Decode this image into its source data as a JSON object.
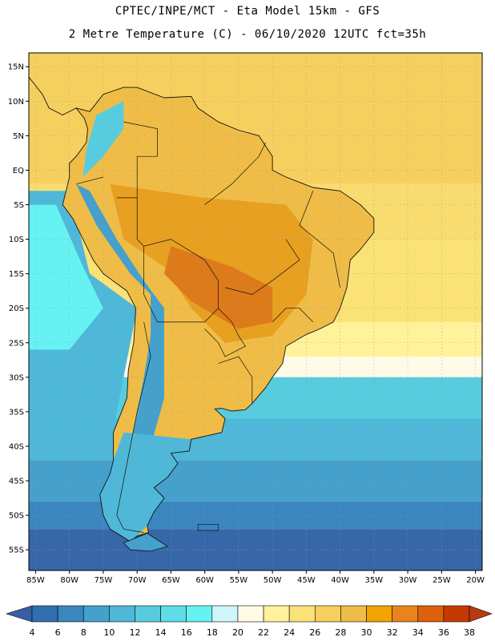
{
  "header": {
    "line1": "CPTEC/INPE/MCT -  Eta Model 15km - GFS",
    "line2": "2 Metre Temperature (C) - 06/10/2020 12UTC fct=35h"
  },
  "map": {
    "lon_range": [
      -86,
      -19
    ],
    "lat_range": [
      -58,
      17
    ],
    "lat_ticks": [
      {
        "value": 15,
        "label": "15N"
      },
      {
        "value": 10,
        "label": "10N"
      },
      {
        "value": 5,
        "label": "5N"
      },
      {
        "value": 0,
        "label": "EQ"
      },
      {
        "value": -5,
        "label": "5S"
      },
      {
        "value": -10,
        "label": "10S"
      },
      {
        "value": -15,
        "label": "15S"
      },
      {
        "value": -20,
        "label": "20S"
      },
      {
        "value": -25,
        "label": "25S"
      },
      {
        "value": -30,
        "label": "30S"
      },
      {
        "value": -35,
        "label": "35S"
      },
      {
        "value": -40,
        "label": "40S"
      },
      {
        "value": -45,
        "label": "45S"
      },
      {
        "value": -50,
        "label": "50S"
      },
      {
        "value": -55,
        "label": "55S"
      }
    ],
    "lon_ticks": [
      {
        "value": -85,
        "label": "85W"
      },
      {
        "value": -80,
        "label": "80W"
      },
      {
        "value": -75,
        "label": "75W"
      },
      {
        "value": -70,
        "label": "70W"
      },
      {
        "value": -65,
        "label": "65W"
      },
      {
        "value": -60,
        "label": "60W"
      },
      {
        "value": -55,
        "label": "55W"
      },
      {
        "value": -50,
        "label": "50W"
      },
      {
        "value": -45,
        "label": "45W"
      },
      {
        "value": -40,
        "label": "40W"
      },
      {
        "value": -35,
        "label": "35W"
      },
      {
        "value": -30,
        "label": "30W"
      },
      {
        "value": -25,
        "label": "25W"
      },
      {
        "value": -20,
        "label": "20W"
      }
    ],
    "grid": true
  },
  "colorbar": {
    "labels": [
      "4",
      "6",
      "8",
      "10",
      "12",
      "14",
      "16",
      "18",
      "20",
      "22",
      "24",
      "26",
      "28",
      "30",
      "32",
      "34",
      "36",
      "38"
    ],
    "colors": [
      "#3070b0",
      "#3b86bf",
      "#45a0cc",
      "#4fb8d8",
      "#57ccdf",
      "#5fdde6",
      "#66f2f2",
      "#cff6fa",
      "#fffbe6",
      "#fff29a",
      "#fbe277",
      "#f6d05f",
      "#efbd47",
      "#f3a400",
      "#e8841d",
      "#dd600c",
      "#c43a00"
    ],
    "below_color": "#3560a6",
    "above_color": "#b83a10"
  },
  "field_colors": {
    "deep_south": "#3767a8",
    "south": "#3b86bf",
    "mid_south": "#45a0cc",
    "cool": "#4fb8d8",
    "cool2": "#57ccdf",
    "cyan": "#66f2f2",
    "pale": "#fffbe6",
    "tropic_ocean": "#f6d05f",
    "warm_land": "#efbd47",
    "hot_land": "#e8a020",
    "very_hot": "#dd7a1a",
    "border": "#111111"
  }
}
